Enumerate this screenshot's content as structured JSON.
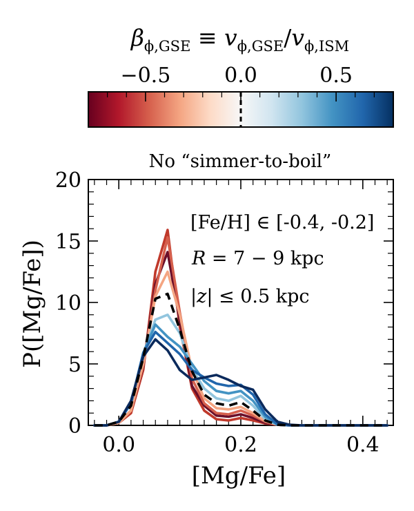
{
  "chart_data": {
    "type": "line",
    "title": "No “simmer-to-boil”",
    "xlabel": "[Mg/Fe]",
    "ylabel": "P([Mg/Fe])",
    "xlim": [
      -0.05,
      0.45
    ],
    "ylim": [
      0,
      20
    ],
    "x_ticks": [
      0.0,
      0.2,
      0.4
    ],
    "x_tick_labels": [
      "0.0",
      "0.2",
      "0.4"
    ],
    "y_ticks": [
      0,
      5,
      10,
      15,
      20
    ],
    "y_tick_labels": [
      "0",
      "5",
      "10",
      "15",
      "20"
    ],
    "annotations": [
      "[Fe/H] ∈ [-0.4, -0.2]",
      "R = 7 − 9 kpc",
      "|z| ≤ 0.5 kpc"
    ],
    "colorbar": {
      "label": "β_φ,GSE ≡ v_φ,GSE / v_φ,ISM",
      "range": [
        -0.8,
        0.8
      ],
      "ticks": [
        -0.5,
        0.0,
        0.5
      ],
      "tick_labels": [
        "−0.5",
        "0.0",
        "0.5"
      ],
      "reference_value": 0.0,
      "colormap": "RdBu",
      "colors": [
        "#67001f",
        "#b2182b",
        "#d6604d",
        "#f4a582",
        "#fddbc7",
        "#f7f7f7",
        "#d1e5f0",
        "#92c5de",
        "#4393c3",
        "#2166ac",
        "#053061"
      ]
    },
    "x": [
      -0.04,
      -0.02,
      0.0,
      0.02,
      0.04,
      0.06,
      0.08,
      0.1,
      0.12,
      0.14,
      0.16,
      0.18,
      0.2,
      0.22,
      0.24,
      0.26,
      0.28,
      0.3,
      0.32,
      0.34,
      0.36,
      0.38,
      0.4,
      0.42,
      0.44
    ],
    "series": [
      {
        "beta": -0.8,
        "color": "#c0392b",
        "style": "solid",
        "values": [
          0,
          0,
          0.2,
          1.0,
          4.5,
          12.5,
          15.9,
          8.0,
          3.0,
          1.2,
          0.5,
          0.4,
          0.6,
          0.4,
          0.15,
          0.05,
          0,
          0,
          0,
          0,
          0,
          0,
          0,
          0,
          0
        ]
      },
      {
        "beta": -0.6,
        "color": "#6b0f2a",
        "style": "solid",
        "values": [
          0,
          0,
          0.2,
          1.2,
          4.8,
          11.5,
          14.1,
          8.5,
          3.2,
          1.6,
          0.8,
          0.7,
          0.9,
          0.6,
          0.2,
          0.05,
          0,
          0,
          0,
          0,
          0,
          0,
          0,
          0,
          0
        ]
      },
      {
        "beta": -0.4,
        "color": "#d6604d",
        "style": "solid",
        "values": [
          0,
          0,
          0.2,
          1.2,
          4.9,
          11.0,
          15.3,
          9.2,
          3.8,
          1.8,
          1.0,
          0.9,
          1.2,
          0.8,
          0.3,
          0.05,
          0,
          0,
          0,
          0,
          0,
          0,
          0,
          0,
          0
        ]
      },
      {
        "beta": -0.2,
        "color": "#f4a582",
        "style": "solid",
        "values": [
          0,
          0,
          0.2,
          1.2,
          5.0,
          10.5,
          12.5,
          9.0,
          4.5,
          2.2,
          1.4,
          1.3,
          1.5,
          1.0,
          0.35,
          0.05,
          0,
          0,
          0,
          0,
          0,
          0,
          0,
          0,
          0
        ]
      },
      {
        "beta": 0.0,
        "color": "#000000",
        "style": "dashed",
        "values": [
          0,
          0,
          0.3,
          1.6,
          5.5,
          10.3,
          10.7,
          7.8,
          4.4,
          2.5,
          1.8,
          1.6,
          1.9,
          1.2,
          0.4,
          0.05,
          0,
          0,
          0,
          0,
          0,
          0,
          0,
          0,
          0
        ]
      },
      {
        "beta": 0.2,
        "color": "#92c5de",
        "style": "solid",
        "values": [
          0,
          0,
          0.3,
          1.8,
          5.8,
          8.6,
          9.0,
          7.5,
          4.6,
          3.0,
          2.2,
          2.0,
          2.4,
          1.6,
          0.5,
          0.05,
          0,
          0,
          0,
          0,
          0,
          0,
          0,
          0,
          0
        ]
      },
      {
        "beta": 0.4,
        "color": "#4393c3",
        "style": "solid",
        "values": [
          0,
          0,
          0.3,
          1.8,
          5.9,
          8.2,
          7.2,
          6.4,
          5.0,
          3.6,
          2.8,
          2.6,
          2.8,
          2.0,
          0.7,
          0.05,
          0,
          0,
          0,
          0,
          0,
          0,
          0,
          0,
          0
        ]
      },
      {
        "beta": 0.6,
        "color": "#2166ac",
        "style": "solid",
        "values": [
          0,
          0,
          0.3,
          1.8,
          5.9,
          7.6,
          6.7,
          5.8,
          4.5,
          3.9,
          3.4,
          3.2,
          3.3,
          2.5,
          0.9,
          0.1,
          0,
          0,
          0,
          0,
          0,
          0,
          0,
          0,
          0
        ]
      },
      {
        "beta": 0.8,
        "color": "#0b2a5c",
        "style": "solid",
        "values": [
          0,
          0,
          0.3,
          2.0,
          5.6,
          7.0,
          6.1,
          4.5,
          3.7,
          3.9,
          4.1,
          3.7,
          3.2,
          2.9,
          1.3,
          0.3,
          0.05,
          0,
          0,
          0,
          0,
          0,
          0,
          0,
          0
        ]
      }
    ]
  }
}
